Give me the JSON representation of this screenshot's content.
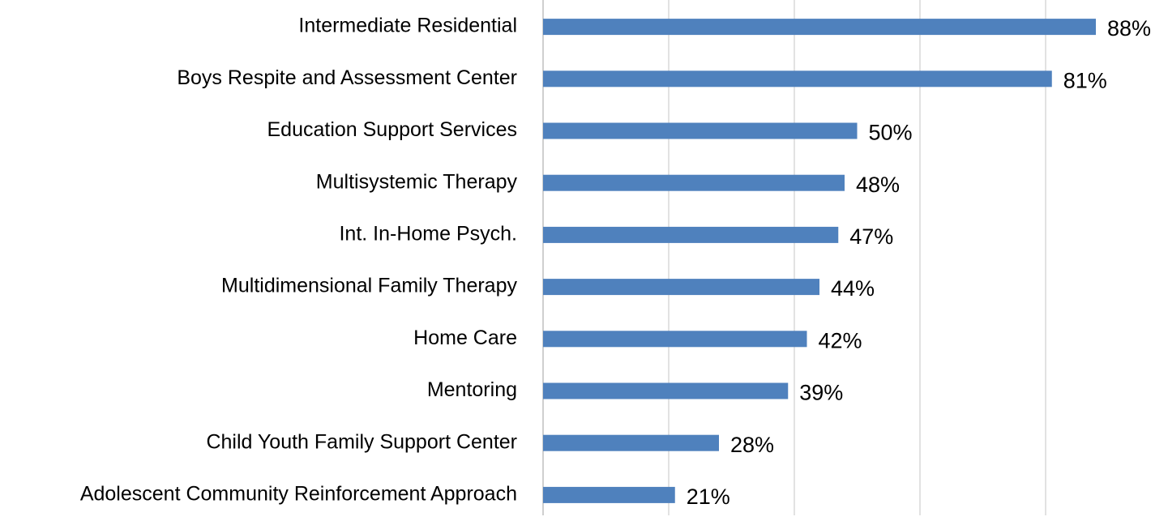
{
  "chart_data": {
    "type": "hbar",
    "categories": [
      "Intermediate Residential",
      "Boys Respite and Assessment Center",
      "Education Support Services",
      "Multisystemic Therapy",
      "Int. In-Home Psych.",
      "Multidimensional Family Therapy",
      "Home Care",
      "Mentoring",
      "Child Youth Family Support Center",
      "Adolescent Community Reinforcement Approach"
    ],
    "values": [
      88,
      81,
      50,
      48,
      47,
      44,
      42,
      39,
      28,
      21
    ],
    "value_labels": [
      "88%",
      "81%",
      "50%",
      "48%",
      "47%",
      "44%",
      "42%",
      "39%",
      "28%",
      "21%"
    ],
    "color": "#4f81bd",
    "xlim": [
      0,
      90
    ],
    "xticks": [
      0,
      20,
      40,
      60,
      80
    ],
    "grid": true
  }
}
